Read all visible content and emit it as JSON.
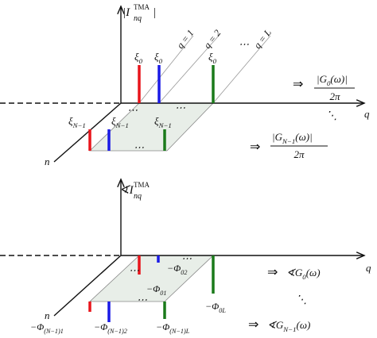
{
  "top": {
    "y_label": {
      "base": "|I",
      "sup": "TMA",
      "sub": "nq",
      "end": "|"
    },
    "q_labels": [
      "q = 1",
      "q = 2",
      "q = L"
    ],
    "row0_labels": [
      {
        "base": "ξ",
        "sub": "0"
      },
      {
        "base": "ξ",
        "sub": "0"
      },
      {
        "base": "ξ",
        "sub": "0"
      }
    ],
    "rowN_labels": [
      {
        "base": "ξ",
        "sub": "N−1"
      },
      {
        "base": "ξ",
        "sub": "N−1"
      },
      {
        "base": "ξ",
        "sub": "N−1"
      }
    ],
    "x_label": "q",
    "n_label": "n",
    "dots": "⋯",
    "ddots": "⋱",
    "result0": {
      "arrow": "⇒",
      "base": "|G",
      "sub": "0",
      "tail": "(ω)|",
      "den": "2π"
    },
    "resultN": {
      "arrow": "⇒",
      "base": "|G",
      "sub": "N−1",
      "tail": "(ω)|",
      "den": "2π"
    }
  },
  "bottom": {
    "y_label": {
      "base": "∢I",
      "sup": "TMA",
      "sub": "nq"
    },
    "x_label": "q",
    "n_label": "n",
    "dots": "⋯",
    "ddots": "⋱",
    "phi_labels": [
      {
        "base": "−Φ",
        "sub": "02"
      },
      {
        "base": "−Φ",
        "sub": "01"
      },
      {
        "base": "−Φ",
        "sub": "0L"
      },
      {
        "base": "−Φ",
        "sub": "(N−1)1"
      },
      {
        "base": "−Φ",
        "sub": "(N−1)2"
      },
      {
        "base": "−Φ",
        "sub": "(N−1)L"
      }
    ],
    "result0": {
      "arrow": "⇒",
      "base": "∢G",
      "sub": "0",
      "tail": "(ω)"
    },
    "resultN": {
      "arrow": "⇒",
      "base": "∢G",
      "sub": "N−1",
      "tail": "(ω)"
    }
  }
}
